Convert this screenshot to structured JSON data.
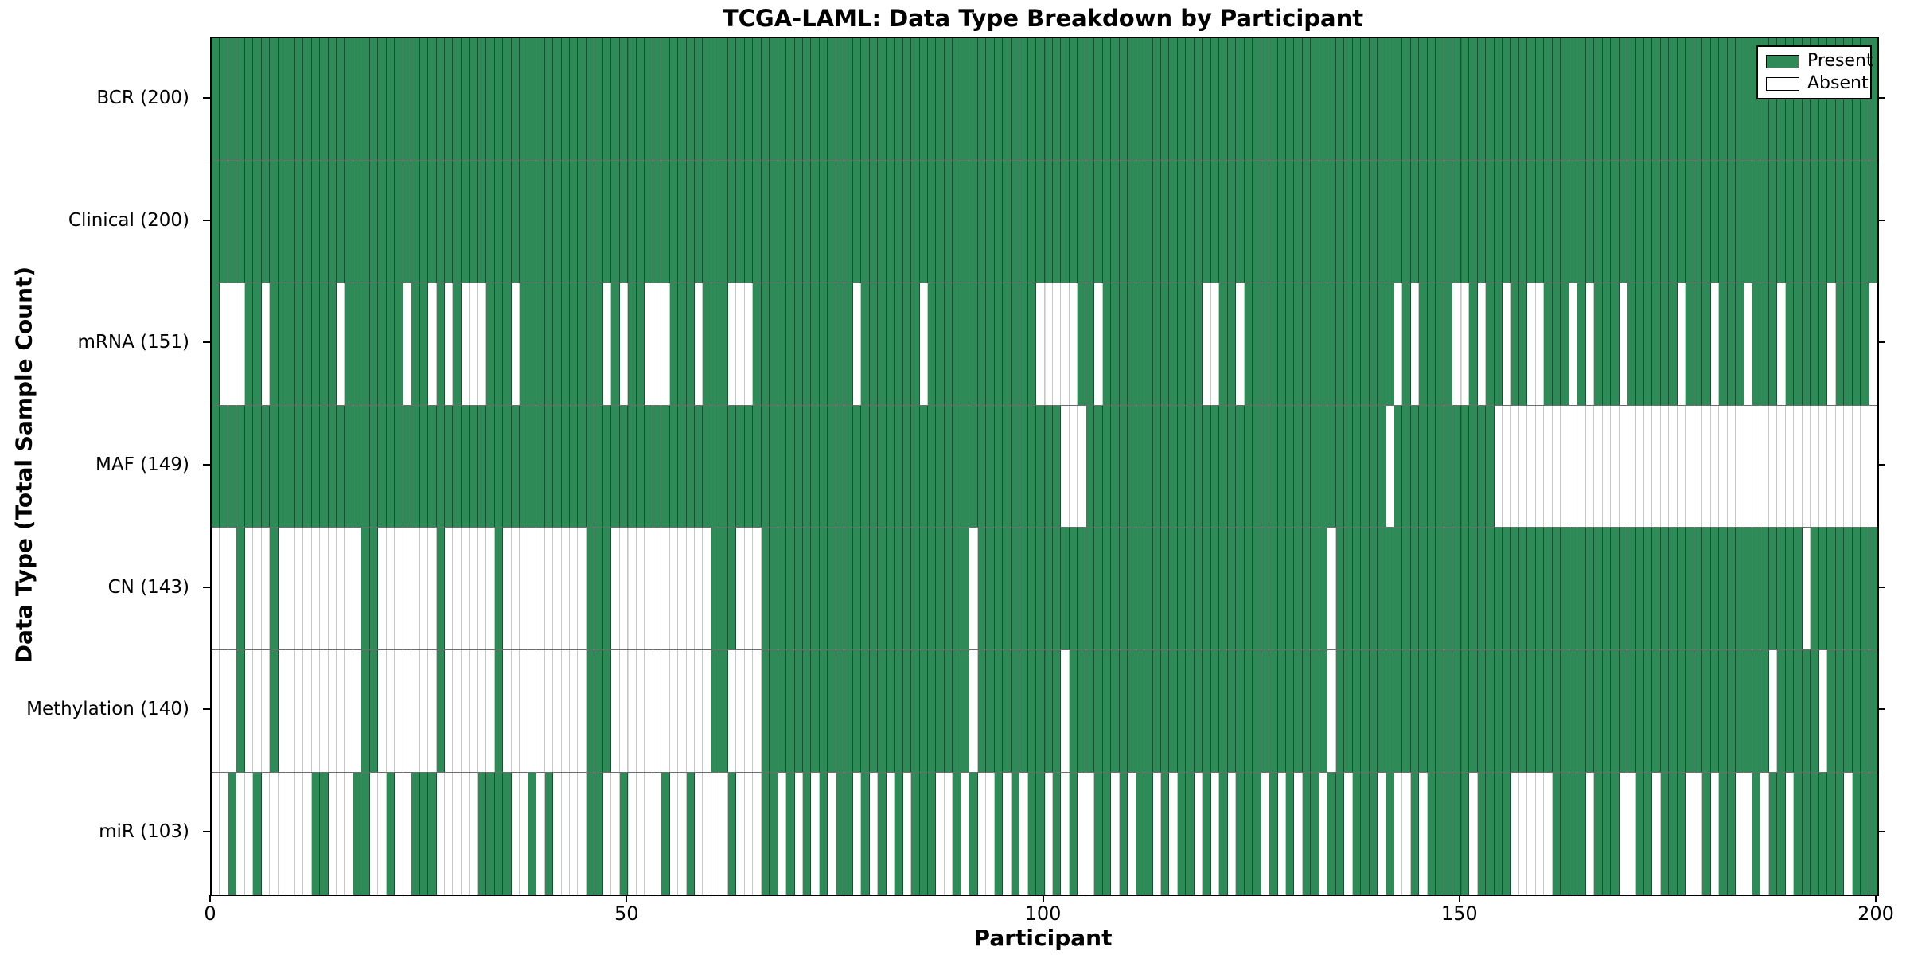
{
  "title": "TCGA-LAML: Data Type Breakdown by Participant",
  "chart_data": {
    "type": "heatmap",
    "title": "TCGA-LAML: Data Type Breakdown by Participant",
    "xlabel": "Participant",
    "ylabel": "Data Type (Total Sample Count)",
    "x_range": [
      0,
      200
    ],
    "x_ticks": [
      0,
      50,
      100,
      150,
      200
    ],
    "n_participants": 200,
    "grid": "row separators and faint vertical gridlines at x ticks",
    "legend_position": "upper right",
    "legend": [
      {
        "label": "Present",
        "color": "#2e8b57"
      },
      {
        "label": "Absent",
        "color": "#ffffff"
      }
    ],
    "colors": {
      "present": "#2e8b57",
      "absent": "#ffffff",
      "plot_border": "#000000"
    },
    "value_encoding": {
      "1": "present",
      "0": "absent"
    },
    "rows": [
      {
        "label": "BCR (200)",
        "name": "BCR",
        "present_count": 200,
        "pattern": "11111111111111111111111111111111111111111111111111111111111111111111111111111111111111111111111111111111111111111111111111111111111111111111111111111111111111111111111111111111111111111111111111111111"
      },
      {
        "label": "Clinical (200)",
        "name": "Clinical",
        "present_count": 200,
        "pattern": "11111111111111111111111111111111111111111111111111111111111111111111111111111111111111111111111111111111111111111111111111111111111111111111111111111111111111111111111111111111111111111111111111111111"
      },
      {
        "label": "mRNA (151)",
        "name": "mRNA",
        "present_count": 151,
        "pattern": "10001101111111101111111011010100011101111111111010110001110111000111111111111011111110111111111111100000110111111111111001101111111111111111110101111001011011001110101110111111011101110111011111011110"
      },
      {
        "label": "MAF (149)",
        "name": "MAF",
        "present_count": 149,
        "pattern": "11111111111111111111111111111111111111111111111111111111111111111111111111111111111111111111111111111100011111111111111111111111111111111111101111111111110000000000000000000000000000000000000000000000"
      },
      {
        "label": "CN (143)",
        "name": "CN",
        "present_count": 143,
        "pattern": "00010001000000000011000000010000001000000000011100000000000011100011111111111111111111111110111111111111111111111111111111111111111111011111111111111111111111111111111111111111111111111111111011111111"
      },
      {
        "label": "Methylation (140)",
        "name": "Methylation",
        "present_count": 140,
        "pattern": "00010001000000000011000000010000001000000000011100000000000011000011111111111111111111111110111111111101111111111111111111111111111111011111111111111111111111111111111111111111111111111110111110111111"
      },
      {
        "label": "miR (103)",
        "name": "miR",
        "present_count": 103,
        "pattern": "00100100000011000110010011100000111100101000011001000010010000100011010101011010101011100101001010110101001101011010110101011101010110110111010010111110111100000111101110011011100101100101101111110111"
      }
    ]
  }
}
